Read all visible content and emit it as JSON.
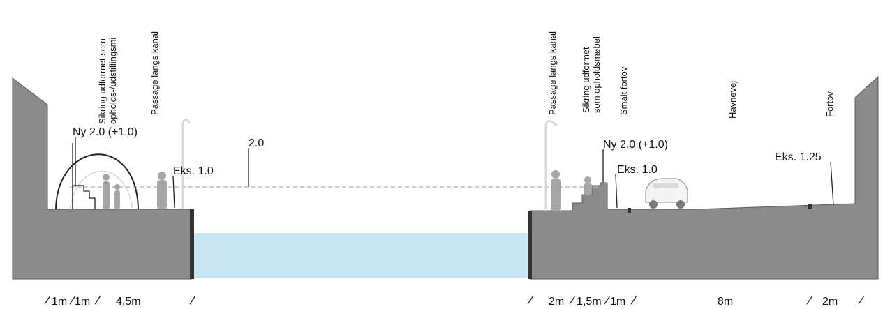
{
  "colors": {
    "ground": "#8b8b8b",
    "ground_edge": "#5a5a5a",
    "water": "#c8e6f5",
    "figure": "#a6a6a6",
    "line": "#222222",
    "waterline": "#b0b0b0"
  },
  "vertical_labels": {
    "left_sikring": [
      "Sikring udformet som",
      "opholds-/udstillingsmi"
    ],
    "left_passage": "Passage langs kanal",
    "right_passage": "Passage langs kanal",
    "right_sikring": [
      "Sikring udformet",
      "som opholdsmøbel"
    ],
    "smalt_fortov": "Smalt fortov",
    "havnevej": "Havnevej",
    "fortov": "Fortov"
  },
  "elevation_labels": {
    "left_ny": "Ny 2.0 (+1.0)",
    "left_eks": "Eks. 1.0",
    "water_level": "2.0",
    "right_ny": "Ny 2.0 (+1.0)",
    "right_eks": "Eks. 1.0",
    "right_eks2": "Eks. 1.25"
  },
  "dimensions": {
    "left_1": "1m",
    "left_2": "1m",
    "left_3": "4,5m",
    "right_1": "2m",
    "right_2": "1,5m",
    "right_3": "1m",
    "right_4": "8m",
    "right_5": "2m"
  }
}
